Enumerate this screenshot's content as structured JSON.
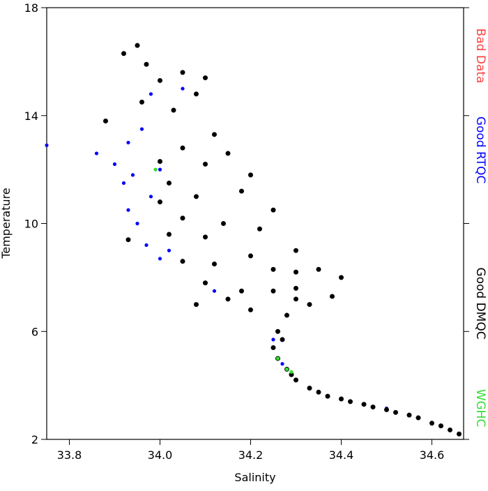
{
  "chart_data": {
    "type": "scatter",
    "x_label": "Salinity",
    "y_label": "Temperature",
    "xlim": [
      33.75,
      34.67
    ],
    "xticks": [
      {
        "value": 33.8,
        "label": "33.8"
      },
      {
        "value": 34.0,
        "label": "34.0"
      },
      {
        "value": 34.2,
        "label": "34.2"
      },
      {
        "value": 34.4,
        "label": "34.4"
      },
      {
        "value": 34.6,
        "label": "34.6"
      }
    ],
    "ylim": [
      2,
      18
    ],
    "yticks": [
      2,
      6,
      10,
      14,
      18
    ],
    "series": [
      {
        "name": "Bad Data",
        "color": "#ff4040",
        "x": [],
        "values": []
      },
      {
        "name": "Good RTQC",
        "color": "#0000ff",
        "x": [
          33.75,
          33.86,
          33.9,
          33.92,
          33.93,
          33.95,
          33.97,
          34.0,
          33.98,
          33.96,
          33.98,
          34.0,
          33.94,
          34.02,
          34.25,
          34.27,
          34.45,
          34.5,
          34.55,
          34.12,
          34.05,
          33.93
        ],
        "values": [
          12.9,
          12.6,
          12.2,
          11.5,
          10.5,
          10.0,
          9.2,
          8.7,
          11.0,
          13.5,
          14.8,
          12.0,
          11.8,
          9.0,
          5.7,
          4.8,
          3.3,
          3.15,
          2.9,
          7.5,
          15.0,
          13.0
        ]
      },
      {
        "name": "Good DMQC",
        "color": "#000000",
        "x": [
          33.92,
          33.95,
          33.97,
          34.0,
          34.05,
          34.1,
          34.08,
          34.03,
          33.96,
          34.12,
          34.15,
          34.2,
          34.1,
          34.05,
          34.0,
          34.18,
          34.25,
          34.22,
          34.3,
          34.35,
          34.4,
          34.3,
          34.2,
          34.1,
          34.05,
          34.0,
          34.02,
          34.05,
          34.1,
          34.15,
          34.2,
          34.25,
          34.3,
          34.33,
          34.28,
          34.26,
          34.25,
          34.26,
          34.28,
          34.3,
          34.33,
          34.37,
          34.42,
          34.47,
          34.52,
          34.57,
          34.62,
          34.66,
          33.88,
          33.93,
          34.08,
          34.18,
          34.12,
          34.25,
          34.02,
          34.08,
          34.14,
          34.3,
          34.38,
          34.4,
          34.5,
          34.6,
          34.27,
          34.29,
          34.35,
          34.45,
          34.55,
          34.64
        ],
        "values": [
          16.3,
          16.6,
          15.9,
          15.3,
          15.6,
          15.4,
          14.8,
          14.2,
          14.5,
          13.3,
          12.6,
          11.8,
          12.2,
          12.8,
          12.3,
          11.2,
          10.5,
          9.8,
          9.0,
          8.3,
          8.0,
          8.2,
          8.8,
          9.5,
          10.2,
          10.8,
          9.6,
          8.6,
          7.8,
          7.2,
          6.8,
          7.5,
          7.2,
          7.0,
          6.6,
          6.0,
          5.4,
          5.0,
          4.6,
          4.2,
          3.9,
          3.6,
          3.4,
          3.2,
          3.0,
          2.8,
          2.5,
          2.2,
          13.8,
          9.4,
          7.0,
          7.5,
          8.5,
          8.3,
          11.5,
          11.0,
          10.0,
          7.6,
          7.3,
          3.5,
          3.1,
          2.6,
          5.7,
          4.4,
          3.75,
          3.3,
          2.9,
          2.35
        ]
      },
      {
        "name": "WGHC",
        "color": "#33dd33",
        "x": [
          34.28,
          34.29,
          34.26,
          33.99
        ],
        "values": [
          4.6,
          4.5,
          5.0,
          12.0
        ]
      }
    ]
  }
}
